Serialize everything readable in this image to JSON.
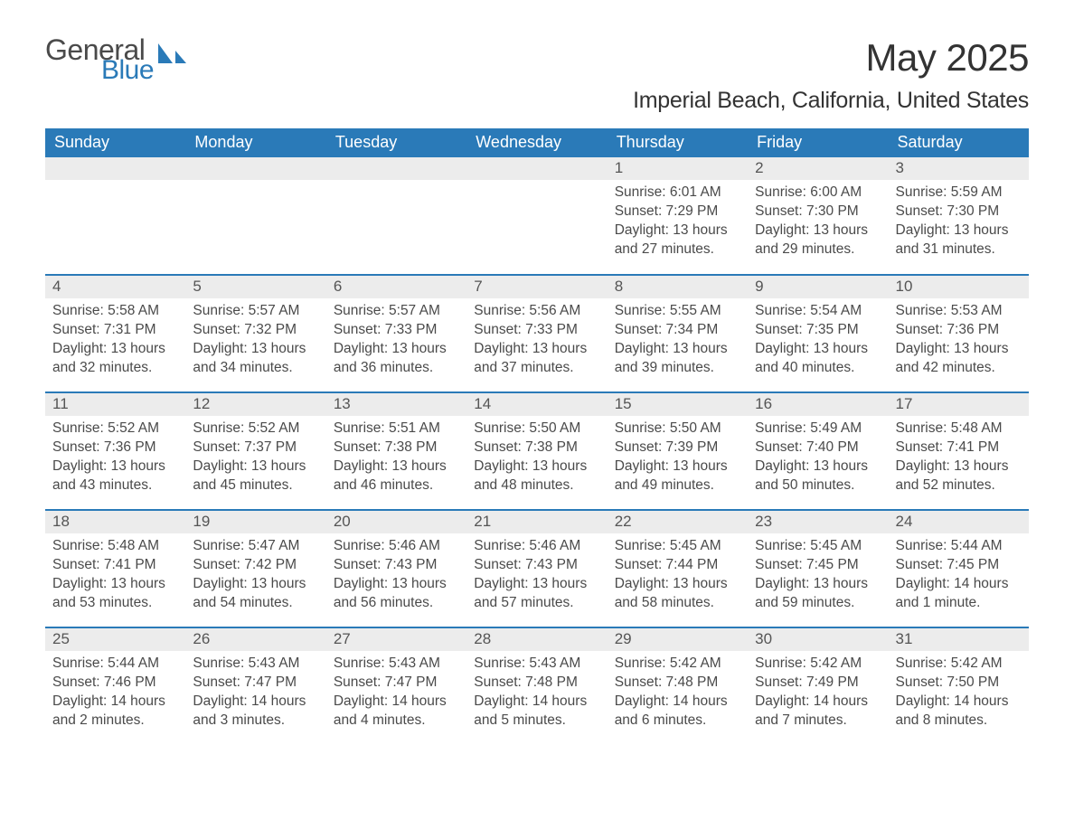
{
  "logo": {
    "word1": "General",
    "word2": "Blue"
  },
  "title": "May 2025",
  "location": "Imperial Beach, California, United States",
  "colors": {
    "header_bg": "#2a7ab8",
    "header_fg": "#ffffff",
    "daynum_bg": "#ececec",
    "daynum_fg": "#555555",
    "text": "#4a4a4a",
    "row_border": "#2a7ab8",
    "page_bg": "#ffffff",
    "logo_gray": "#4a4a4a",
    "logo_blue": "#2a7ab8"
  },
  "typography": {
    "title_fontsize": 42,
    "location_fontsize": 25,
    "header_fontsize": 18,
    "daynum_fontsize": 17,
    "body_fontsize": 15.5
  },
  "dayHeaders": [
    "Sunday",
    "Monday",
    "Tuesday",
    "Wednesday",
    "Thursday",
    "Friday",
    "Saturday"
  ],
  "weeks": [
    [
      {
        "empty": true
      },
      {
        "empty": true
      },
      {
        "empty": true
      },
      {
        "empty": true
      },
      {
        "num": "1",
        "sunrise": "6:01 AM",
        "sunset": "7:29 PM",
        "daylight": "13 hours and 27 minutes."
      },
      {
        "num": "2",
        "sunrise": "6:00 AM",
        "sunset": "7:30 PM",
        "daylight": "13 hours and 29 minutes."
      },
      {
        "num": "3",
        "sunrise": "5:59 AM",
        "sunset": "7:30 PM",
        "daylight": "13 hours and 31 minutes."
      }
    ],
    [
      {
        "num": "4",
        "sunrise": "5:58 AM",
        "sunset": "7:31 PM",
        "daylight": "13 hours and 32 minutes."
      },
      {
        "num": "5",
        "sunrise": "5:57 AM",
        "sunset": "7:32 PM",
        "daylight": "13 hours and 34 minutes."
      },
      {
        "num": "6",
        "sunrise": "5:57 AM",
        "sunset": "7:33 PM",
        "daylight": "13 hours and 36 minutes."
      },
      {
        "num": "7",
        "sunrise": "5:56 AM",
        "sunset": "7:33 PM",
        "daylight": "13 hours and 37 minutes."
      },
      {
        "num": "8",
        "sunrise": "5:55 AM",
        "sunset": "7:34 PM",
        "daylight": "13 hours and 39 minutes."
      },
      {
        "num": "9",
        "sunrise": "5:54 AM",
        "sunset": "7:35 PM",
        "daylight": "13 hours and 40 minutes."
      },
      {
        "num": "10",
        "sunrise": "5:53 AM",
        "sunset": "7:36 PM",
        "daylight": "13 hours and 42 minutes."
      }
    ],
    [
      {
        "num": "11",
        "sunrise": "5:52 AM",
        "sunset": "7:36 PM",
        "daylight": "13 hours and 43 minutes."
      },
      {
        "num": "12",
        "sunrise": "5:52 AM",
        "sunset": "7:37 PM",
        "daylight": "13 hours and 45 minutes."
      },
      {
        "num": "13",
        "sunrise": "5:51 AM",
        "sunset": "7:38 PM",
        "daylight": "13 hours and 46 minutes."
      },
      {
        "num": "14",
        "sunrise": "5:50 AM",
        "sunset": "7:38 PM",
        "daylight": "13 hours and 48 minutes."
      },
      {
        "num": "15",
        "sunrise": "5:50 AM",
        "sunset": "7:39 PM",
        "daylight": "13 hours and 49 minutes."
      },
      {
        "num": "16",
        "sunrise": "5:49 AM",
        "sunset": "7:40 PM",
        "daylight": "13 hours and 50 minutes."
      },
      {
        "num": "17",
        "sunrise": "5:48 AM",
        "sunset": "7:41 PM",
        "daylight": "13 hours and 52 minutes."
      }
    ],
    [
      {
        "num": "18",
        "sunrise": "5:48 AM",
        "sunset": "7:41 PM",
        "daylight": "13 hours and 53 minutes."
      },
      {
        "num": "19",
        "sunrise": "5:47 AM",
        "sunset": "7:42 PM",
        "daylight": "13 hours and 54 minutes."
      },
      {
        "num": "20",
        "sunrise": "5:46 AM",
        "sunset": "7:43 PM",
        "daylight": "13 hours and 56 minutes."
      },
      {
        "num": "21",
        "sunrise": "5:46 AM",
        "sunset": "7:43 PM",
        "daylight": "13 hours and 57 minutes."
      },
      {
        "num": "22",
        "sunrise": "5:45 AM",
        "sunset": "7:44 PM",
        "daylight": "13 hours and 58 minutes."
      },
      {
        "num": "23",
        "sunrise": "5:45 AM",
        "sunset": "7:45 PM",
        "daylight": "13 hours and 59 minutes."
      },
      {
        "num": "24",
        "sunrise": "5:44 AM",
        "sunset": "7:45 PM",
        "daylight": "14 hours and 1 minute."
      }
    ],
    [
      {
        "num": "25",
        "sunrise": "5:44 AM",
        "sunset": "7:46 PM",
        "daylight": "14 hours and 2 minutes."
      },
      {
        "num": "26",
        "sunrise": "5:43 AM",
        "sunset": "7:47 PM",
        "daylight": "14 hours and 3 minutes."
      },
      {
        "num": "27",
        "sunrise": "5:43 AM",
        "sunset": "7:47 PM",
        "daylight": "14 hours and 4 minutes."
      },
      {
        "num": "28",
        "sunrise": "5:43 AM",
        "sunset": "7:48 PM",
        "daylight": "14 hours and 5 minutes."
      },
      {
        "num": "29",
        "sunrise": "5:42 AM",
        "sunset": "7:48 PM",
        "daylight": "14 hours and 6 minutes."
      },
      {
        "num": "30",
        "sunrise": "5:42 AM",
        "sunset": "7:49 PM",
        "daylight": "14 hours and 7 minutes."
      },
      {
        "num": "31",
        "sunrise": "5:42 AM",
        "sunset": "7:50 PM",
        "daylight": "14 hours and 8 minutes."
      }
    ]
  ],
  "labels": {
    "sunrise": "Sunrise:",
    "sunset": "Sunset:",
    "daylight": "Daylight:"
  }
}
